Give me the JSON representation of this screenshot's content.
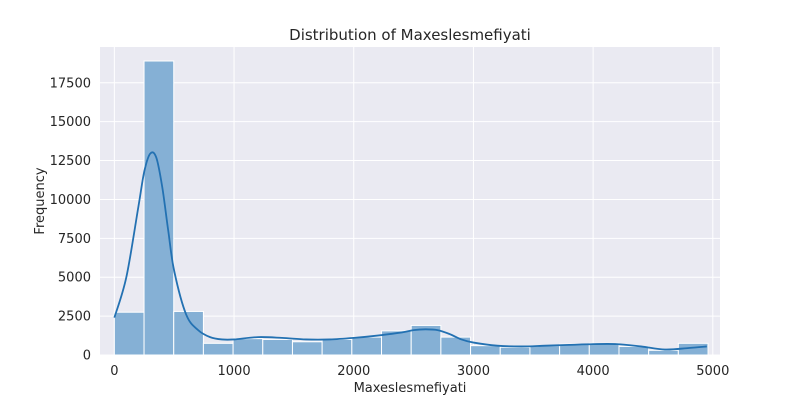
{
  "chart_data": {
    "type": "bar",
    "title": "Distribution of Maxeslesmefiyati",
    "xlabel": "Maxeslesmefiyati",
    "ylabel": "Frequency",
    "xlim": [
      -120,
      5060
    ],
    "ylim": [
      0,
      19800
    ],
    "xticks": [
      0,
      1000,
      2000,
      3000,
      4000,
      5000
    ],
    "xtick_labels": [
      "0",
      "1000",
      "2000",
      "3000",
      "4000",
      "5000"
    ],
    "yticks": [
      0,
      2500,
      5000,
      7500,
      10000,
      12500,
      15000,
      17500
    ],
    "ytick_labels": [
      "0",
      "2500",
      "5000",
      "7500",
      "10000",
      "12500",
      "15000",
      "17500"
    ],
    "grid": true,
    "bins": [
      {
        "x0": 0,
        "x1": 248,
        "count": 2750
      },
      {
        "x0": 248,
        "x1": 496,
        "count": 18900
      },
      {
        "x0": 496,
        "x1": 744,
        "count": 2800
      },
      {
        "x0": 744,
        "x1": 992,
        "count": 750
      },
      {
        "x0": 992,
        "x1": 1240,
        "count": 1050
      },
      {
        "x0": 1240,
        "x1": 1488,
        "count": 1000
      },
      {
        "x0": 1488,
        "x1": 1736,
        "count": 850
      },
      {
        "x0": 1736,
        "x1": 1984,
        "count": 1000
      },
      {
        "x0": 1984,
        "x1": 2232,
        "count": 1150
      },
      {
        "x0": 2232,
        "x1": 2480,
        "count": 1550
      },
      {
        "x0": 2480,
        "x1": 2728,
        "count": 1900
      },
      {
        "x0": 2728,
        "x1": 2976,
        "count": 1150
      },
      {
        "x0": 2976,
        "x1": 3224,
        "count": 600
      },
      {
        "x0": 3224,
        "x1": 3472,
        "count": 500
      },
      {
        "x0": 3472,
        "x1": 3720,
        "count": 600
      },
      {
        "x0": 3720,
        "x1": 3968,
        "count": 700
      },
      {
        "x0": 3968,
        "x1": 4216,
        "count": 750
      },
      {
        "x0": 4216,
        "x1": 4464,
        "count": 550
      },
      {
        "x0": 4464,
        "x1": 4712,
        "count": 300
      },
      {
        "x0": 4712,
        "x1": 4960,
        "count": 750
      }
    ],
    "kde": {
      "x": [
        0,
        100,
        200,
        250,
        300,
        350,
        400,
        450,
        500,
        600,
        700,
        800,
        900,
        1000,
        1200,
        1400,
        1600,
        1800,
        2000,
        2200,
        2400,
        2500,
        2600,
        2700,
        2800,
        2900,
        3000,
        3200,
        3400,
        3600,
        3800,
        4000,
        4200,
        4400,
        4600,
        4800,
        4950
      ],
      "y": [
        2400,
        5000,
        9500,
        11800,
        12950,
        12700,
        10800,
        8000,
        5400,
        2600,
        1600,
        1150,
        1000,
        1000,
        1150,
        1100,
        1000,
        1000,
        1100,
        1250,
        1450,
        1600,
        1650,
        1600,
        1350,
        1000,
        800,
        600,
        550,
        600,
        650,
        700,
        700,
        550,
        350,
        450,
        550
      ]
    },
    "colors": {
      "bar_fill": "#85b0d5",
      "bar_stroke": "#ffffff",
      "kde_line": "#2371b2",
      "plot_background": "#eaeaf2",
      "grid": "#ffffff",
      "page_background": "#ffffff",
      "text": "#262626"
    }
  }
}
